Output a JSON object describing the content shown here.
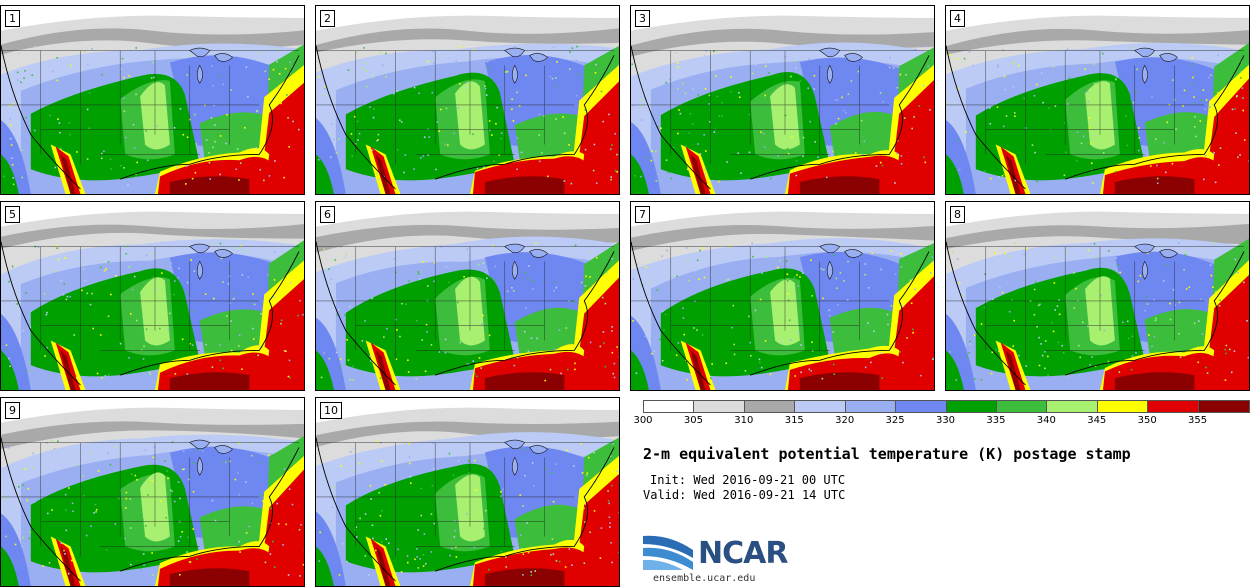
{
  "panels": [
    {
      "label": "1"
    },
    {
      "label": "2"
    },
    {
      "label": "3"
    },
    {
      "label": "4"
    },
    {
      "label": "5"
    },
    {
      "label": "6"
    },
    {
      "label": "7"
    },
    {
      "label": "8"
    },
    {
      "label": "9"
    },
    {
      "label": "10"
    }
  ],
  "colorbar": {
    "ticks": [
      "300",
      "305",
      "310",
      "315",
      "320",
      "325",
      "330",
      "335",
      "340",
      "345",
      "350",
      "355"
    ],
    "colors": [
      "#ffffff",
      "#dcdcdc",
      "#a9a9a9",
      "#bccbf5",
      "#9aaff2",
      "#6f87f0",
      "#00a000",
      "#3cbd3c",
      "#a8f070",
      "#ffff00",
      "#e00000",
      "#8b0000"
    ]
  },
  "title": "2-m equivalent potential temperature (K) postage stamp",
  "init": "Init: Wed 2016-09-21 00 UTC",
  "valid": "Valid: Wed 2016-09-21 14 UTC",
  "logo": {
    "text": "NCAR",
    "url": "ensemble.ucar.edu"
  }
}
